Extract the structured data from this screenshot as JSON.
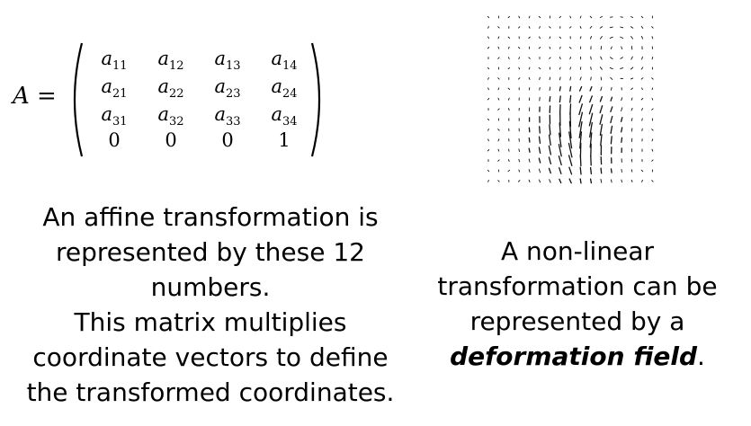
{
  "matrix": {
    "label": "A",
    "equals": "=",
    "rows": [
      [
        {
          "base": "a",
          "sub": "11"
        },
        {
          "base": "a",
          "sub": "12"
        },
        {
          "base": "a",
          "sub": "13"
        },
        {
          "base": "a",
          "sub": "14"
        }
      ],
      [
        {
          "base": "a",
          "sub": "21"
        },
        {
          "base": "a",
          "sub": "22"
        },
        {
          "base": "a",
          "sub": "23"
        },
        {
          "base": "a",
          "sub": "24"
        }
      ],
      [
        {
          "base": "a",
          "sub": "31"
        },
        {
          "base": "a",
          "sub": "32"
        },
        {
          "base": "a",
          "sub": "33"
        },
        {
          "base": "a",
          "sub": "34"
        }
      ],
      [
        {
          "base": "0",
          "sub": ""
        },
        {
          "base": "0",
          "sub": ""
        },
        {
          "base": "0",
          "sub": ""
        },
        {
          "base": "1",
          "sub": ""
        }
      ]
    ]
  },
  "left_caption": {
    "lines": [
      "An affine transformation is",
      "represented by these 12",
      "numbers.",
      "This matrix multiplies",
      "coordinate vectors to define",
      "the transformed coordinates."
    ]
  },
  "right_caption": {
    "lines": [
      "A non-linear",
      "transformation can be",
      "represented by a"
    ],
    "emphasis": "deformation field",
    "emphasis_suffix": "."
  },
  "colors": {
    "text": "#000000",
    "background": "#ffffff",
    "arrow": "#111111"
  }
}
